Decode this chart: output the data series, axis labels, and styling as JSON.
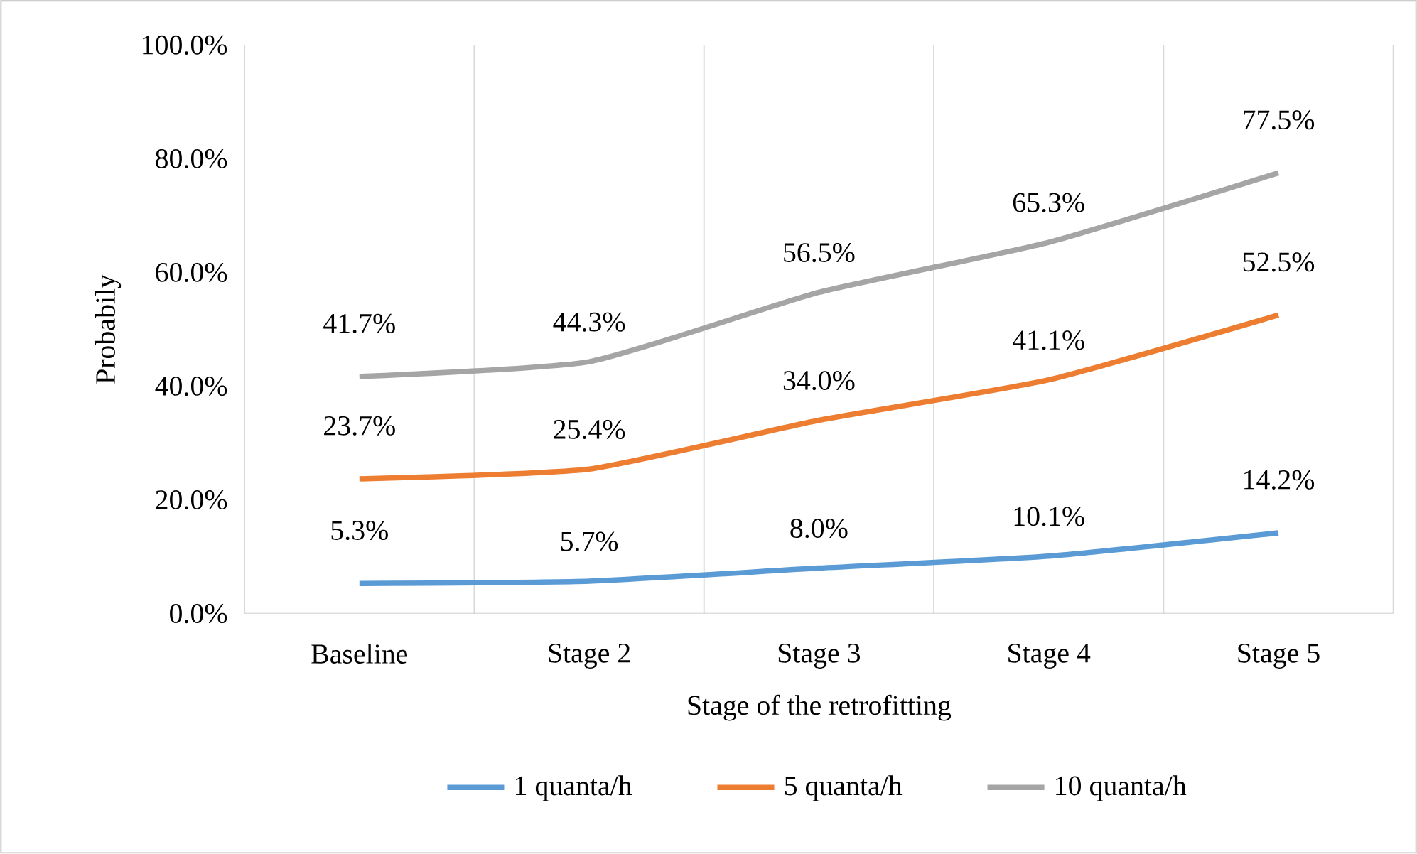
{
  "chart_data": {
    "type": "line",
    "xlabel": "Stage of the retrofitting",
    "ylabel": "Probabily",
    "categories": [
      "Baseline",
      "Stage 2",
      "Stage 3",
      "Stage 4",
      "Stage 5"
    ],
    "ylim": [
      0,
      100
    ],
    "yticks": [
      {
        "value": 0,
        "label": "0.0%"
      },
      {
        "value": 20,
        "label": "20.0%"
      },
      {
        "value": 40,
        "label": "40.0%"
      },
      {
        "value": 60,
        "label": "60.0%"
      },
      {
        "value": 80,
        "label": "80.0%"
      },
      {
        "value": 100,
        "label": "100.0%"
      }
    ],
    "grid": "x",
    "legend": "bottom",
    "marker": "none",
    "line_style": "solid",
    "series": [
      {
        "name": "1 quanta/h",
        "color": "#5b9bd5",
        "values": [
          5.3,
          5.7,
          8.0,
          10.1,
          14.2
        ],
        "value_labels": [
          "5.3%",
          "5.7%",
          "8.0%",
          "10.1%",
          "14.2%"
        ]
      },
      {
        "name": "5 quanta/h",
        "color": "#ed7d31",
        "values": [
          23.7,
          25.4,
          34.0,
          41.1,
          52.5
        ],
        "value_labels": [
          "23.7%",
          "25.4%",
          "34.0%",
          "41.1%",
          "52.5%"
        ]
      },
      {
        "name": "10 quanta/h",
        "color": "#a5a5a5",
        "values": [
          41.7,
          44.3,
          56.5,
          65.3,
          77.5
        ],
        "value_labels": [
          "41.7%",
          "44.3%",
          "56.5%",
          "65.3%",
          "77.5%"
        ]
      }
    ]
  }
}
